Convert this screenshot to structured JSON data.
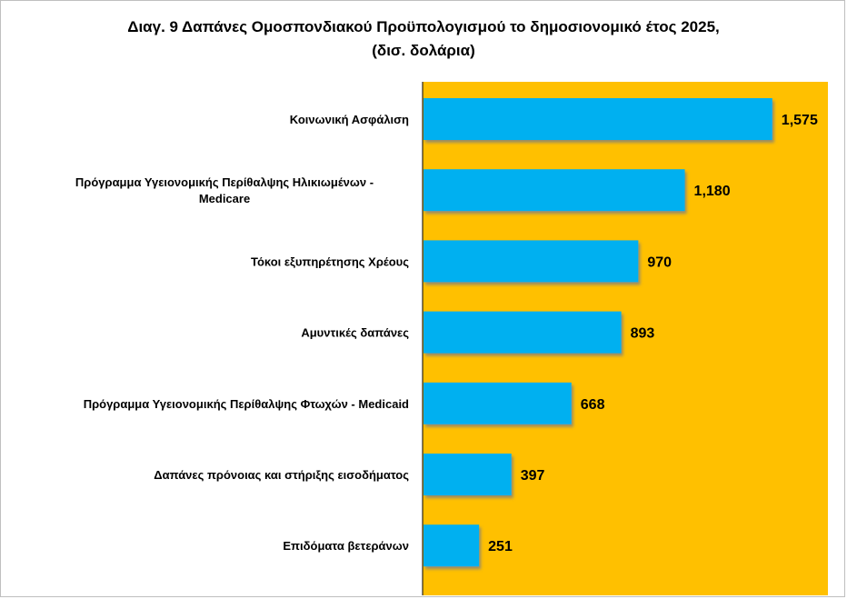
{
  "chart_data": {
    "type": "bar",
    "orientation": "horizontal",
    "title": "Διαγ. 9  Δαπάνες Ομοσπονδιακού Προϋπολογισμού  το δημοσιονομικό έτος 2025,",
    "subtitle": "(δισ. δολάρια)",
    "categories": [
      [
        "Κοινωνική Ασφάλιση"
      ],
      [
        "Πρόγραμμα Υγειονομικής Περίθαλψης Ηλικιωμένων -",
        "Medicare"
      ],
      [
        "Τόκοι εξυπηρέτησης Χρέους"
      ],
      [
        "Αμυντικές δαπάνες"
      ],
      [
        "Πρόγραμμα Υγειονομικής Περίθαλψης Φτωχών - Medicaid"
      ],
      [
        "Δαπάνες πρόνοιας και στήριξης εισοδήματος"
      ],
      [
        "Επιδόματα βετεράνων"
      ]
    ],
    "values": [
      1575,
      1180,
      970,
      893,
      668,
      397,
      251
    ],
    "value_labels": [
      "1,575",
      "1,180",
      "970",
      "893",
      "668",
      "397",
      "251"
    ],
    "xlim": [
      0,
      1800
    ],
    "grid": false,
    "legend": "none",
    "colors": {
      "bar": "#00b0f0",
      "plot_background": "#ffc000",
      "bar_shadow": "#7f7f7f"
    }
  }
}
